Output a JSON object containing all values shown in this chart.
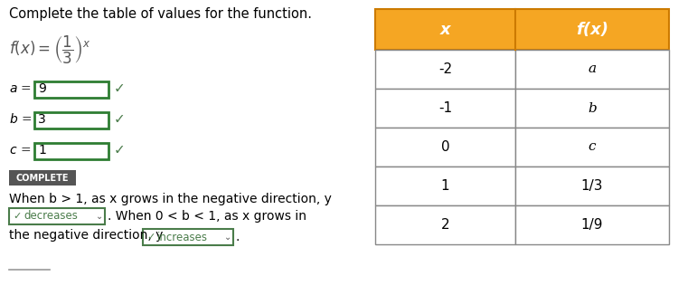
{
  "title_text": "Complete the table of values for the function.",
  "left_values": [
    "9",
    "3",
    "1"
  ],
  "complete_btn": "COMPLETE",
  "bottom_line1": "When b > 1, as x grows in the negative direction, y",
  "bottom_line2": ". When 0 < b < 1, as x grows in",
  "bottom_line3": "the negative direction, y",
  "bottom_line4": ".",
  "dropdown1": "decreases",
  "dropdown2": "increases",
  "table_header_x": "x",
  "table_header_fx": "f(x)",
  "table_rows": [
    [
      "-2",
      "a"
    ],
    [
      "-1",
      "b"
    ],
    [
      "0",
      "c"
    ],
    [
      "1",
      "1/3"
    ],
    [
      "2",
      "1/9"
    ]
  ],
  "header_bg": "#F5A623",
  "header_border": "#cc7a00",
  "table_border": "#888888",
  "table_bg": "#ffffff",
  "input_border": "#2e7d32",
  "input_bg": "#ffffff",
  "check_color": "#4a7c4a",
  "complete_bg": "#555555",
  "complete_fg": "#ffffff",
  "dropdown_border": "#4a7c4a",
  "dropdown_text": "#4a7c4a",
  "body_text_color": "#000000",
  "func_color": "#555555",
  "title_fontsize": 10.5,
  "body_fontsize": 10,
  "table_fontsize": 11
}
